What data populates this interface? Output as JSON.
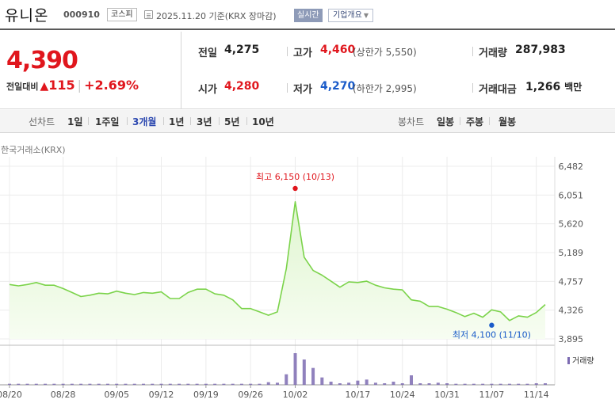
{
  "header": {
    "stock_name": "유니온",
    "stock_code": "000910",
    "market": "코스피",
    "date_text": "2025.11.20  기준(KRX 장마감)",
    "realtime_label": "실시간",
    "company_label": "기업개요"
  },
  "quote": {
    "price": "4,390",
    "change_label": "전일대비",
    "change_arrow": "▲",
    "change_value": "115",
    "change_pct": "+2.69%",
    "prev_close_label": "전일",
    "prev_close": "4,275",
    "open_label": "시가",
    "open": "4,280",
    "high_label": "고가",
    "high": "4,460",
    "upper_limit": "(상한가 5,550)",
    "low_label": "저가",
    "low": "4,270",
    "lower_limit": "(하한가 2,995)",
    "volume_label": "거래량",
    "volume": "287,983",
    "amount_label": "거래대금",
    "amount": "1,266",
    "amount_unit": "백만"
  },
  "tabs": {
    "line_label": "선차트",
    "line_periods": [
      "1일",
      "1주일",
      "3개월",
      "1년",
      "3년",
      "5년",
      "10년"
    ],
    "active_period": "3개월",
    "candle_label": "봉차트",
    "candle_periods": [
      "일봉",
      "주봉",
      "월봉"
    ]
  },
  "chart_data": {
    "type": "area",
    "exchange_label": "한국거래소(KRX)",
    "y_ticks": [
      "6,482",
      "6,051",
      "5,620",
      "5,189",
      "4,757",
      "4,326",
      "3,895"
    ],
    "ylim": [
      3895,
      6482
    ],
    "x_ticks": [
      "08/20",
      "08/28",
      "09/05",
      "09/12",
      "09/19",
      "09/26",
      "10/02",
      "10/17",
      "10/24",
      "10/31",
      "11/07",
      "11/14"
    ],
    "x_tick_index": [
      0,
      6,
      12,
      17,
      22,
      27,
      32,
      39,
      44,
      49,
      54,
      59
    ],
    "series": [
      {
        "values": [
          4710,
          4690,
          4710,
          4740,
          4700,
          4700,
          4650,
          4590,
          4530,
          4550,
          4580,
          4570,
          4610,
          4580,
          4560,
          4590,
          4580,
          4600,
          4500,
          4500,
          4590,
          4640,
          4640,
          4570,
          4550,
          4480,
          4350,
          4350,
          4300,
          4250,
          4300,
          4950,
          5950,
          5120,
          4920,
          4850,
          4760,
          4670,
          4750,
          4740,
          4760,
          4700,
          4660,
          4640,
          4630,
          4480,
          4460,
          4380,
          4380,
          4340,
          4290,
          4230,
          4280,
          4220,
          4330,
          4300,
          4170,
          4240,
          4220,
          4290,
          4410
        ]
      }
    ],
    "volume_values": [
      2,
      2,
      2,
      2,
      2,
      2,
      2,
      2,
      2,
      2,
      2,
      2,
      2,
      2,
      2,
      2,
      2,
      2,
      2,
      2,
      2,
      2,
      2,
      2,
      2,
      2,
      2,
      2,
      2,
      5,
      4,
      20,
      60,
      48,
      32,
      14,
      6,
      3,
      4,
      8,
      10,
      4,
      3,
      6,
      3,
      18,
      3,
      3,
      4,
      3,
      2,
      2,
      2,
      2,
      2,
      2,
      2,
      2,
      2,
      3,
      3
    ],
    "high_annotation": "최고 6,150 (10/13)",
    "high_index": 32,
    "high_value": 6150,
    "low_annotation": "최저 4,100 (11/10)",
    "low_index": 54,
    "low_value": 4100,
    "volume_legend": "거래량",
    "colors": {
      "line": "#7bd34a",
      "fill_top": "#dff5cf",
      "fill_bottom": "#f7fdf2",
      "volume": "#7c6bb2",
      "high": "#e0161d",
      "low": "#1a5bc9"
    }
  }
}
